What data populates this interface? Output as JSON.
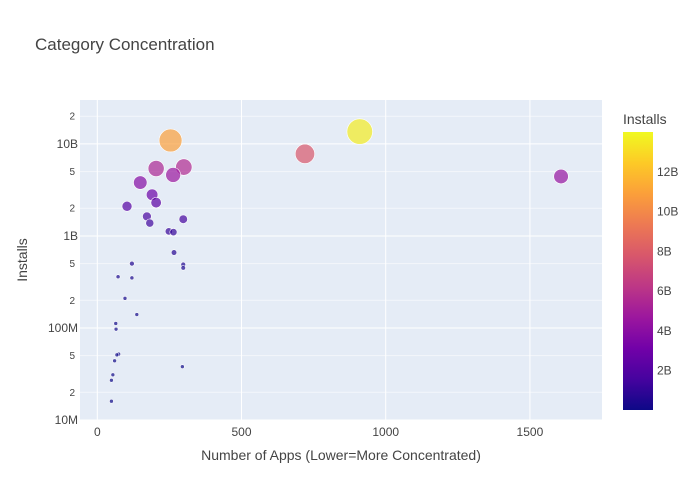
{
  "chart_data": {
    "type": "scatter",
    "title": "Category Concentration",
    "xlabel": "Number of Apps (Lower=More Concentrated)",
    "ylabel": "Installs",
    "x_scale": "linear",
    "y_scale": "log",
    "xlim": [
      -60,
      1750
    ],
    "ylim": [
      10000000,
      30000000000
    ],
    "x_ticks": [
      0,
      500,
      1000,
      1500
    ],
    "x_tick_labels": [
      "0",
      "500",
      "1000",
      "1500"
    ],
    "y_major_ticks": [
      10000000,
      100000000,
      1000000000,
      10000000000
    ],
    "y_major_labels": [
      "10M",
      "100M",
      "1B",
      "10B"
    ],
    "y_minor_ticks": [
      20000000,
      50000000,
      200000000,
      500000000,
      2000000000,
      5000000000,
      20000000000
    ],
    "y_minor_labels": [
      "2",
      "5",
      "2",
      "5",
      "2",
      "5",
      "2"
    ],
    "colorbar": {
      "title": "Installs",
      "min": 16000000,
      "max": 14000000000,
      "ticks": [
        2000000000,
        4000000000,
        6000000000,
        8000000000,
        10000000000,
        12000000000
      ],
      "tick_labels": [
        "2B",
        "4B",
        "6B",
        "8B",
        "10B",
        "12B"
      ],
      "colorscale": [
        "#0d0887",
        "#46039f",
        "#7201a8",
        "#9c179e",
        "#bd3786",
        "#d8576b",
        "#ed7953",
        "#fb9f3a",
        "#fdca26",
        "#f0f921"
      ]
    },
    "size_by": "Installs",
    "grid": true,
    "points": [
      {
        "x": 1608,
        "y": 4430000000
      },
      {
        "x": 910,
        "y": 13600000000
      },
      {
        "x": 720,
        "y": 7800000000
      },
      {
        "x": 300,
        "y": 5600000000
      },
      {
        "x": 263,
        "y": 4600000000
      },
      {
        "x": 254,
        "y": 10900000000
      },
      {
        "x": 204,
        "y": 5400000000
      },
      {
        "x": 149,
        "y": 3800000000
      },
      {
        "x": 190,
        "y": 2800000000
      },
      {
        "x": 204,
        "y": 2300000000
      },
      {
        "x": 103,
        "y": 2100000000
      },
      {
        "x": 298,
        "y": 1520000000
      },
      {
        "x": 172,
        "y": 1630000000
      },
      {
        "x": 182,
        "y": 1380000000
      },
      {
        "x": 264,
        "y": 1100000000
      },
      {
        "x": 248,
        "y": 1120000000
      },
      {
        "x": 266,
        "y": 660000000
      },
      {
        "x": 298,
        "y": 490000000
      },
      {
        "x": 298,
        "y": 450000000
      },
      {
        "x": 120,
        "y": 500000000
      },
      {
        "x": 72,
        "y": 360000000
      },
      {
        "x": 120,
        "y": 350000000
      },
      {
        "x": 96,
        "y": 210000000
      },
      {
        "x": 137,
        "y": 140000000
      },
      {
        "x": 64,
        "y": 112000000
      },
      {
        "x": 65,
        "y": 97000000
      },
      {
        "x": 74,
        "y": 52000000
      },
      {
        "x": 68,
        "y": 51000000
      },
      {
        "x": 60,
        "y": 44000000
      },
      {
        "x": 295,
        "y": 38000000
      },
      {
        "x": 54,
        "y": 31000000
      },
      {
        "x": 49,
        "y": 27000000
      },
      {
        "x": 49,
        "y": 16000000
      }
    ]
  }
}
